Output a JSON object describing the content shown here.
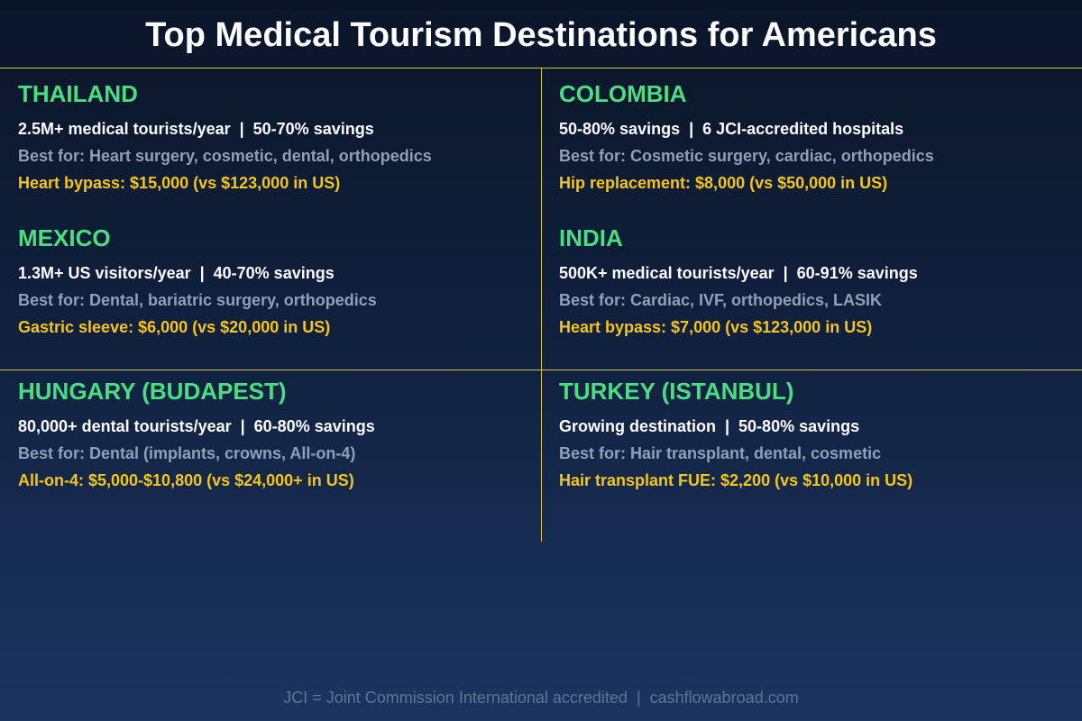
{
  "title": "Top Medical Tourism Destinations for Americans",
  "destinations": [
    {
      "name": "THAILAND",
      "stats": "2.5M+ medical tourists/year  |  50-70% savings",
      "best_for": "Best for: Heart surgery, cosmetic, dental, orthopedics",
      "price": "Heart bypass: $15,000 (vs $123,000 in US)"
    },
    {
      "name": "COLOMBIA",
      "stats": "50-80% savings  |  6 JCI-accredited hospitals",
      "best_for": "Best for: Cosmetic surgery, cardiac, orthopedics",
      "price": "Hip replacement: $8,000 (vs $50,000 in US)"
    },
    {
      "name": "MEXICO",
      "stats": "1.3M+ US visitors/year  |  40-70% savings",
      "best_for": "Best for: Dental, bariatric surgery, orthopedics",
      "price": "Gastric sleeve: $6,000 (vs $20,000 in US)"
    },
    {
      "name": "INDIA",
      "stats": "500K+ medical tourists/year  |  60-91% savings",
      "best_for": "Best for: Cardiac, IVF, orthopedics, LASIK",
      "price": "Heart bypass: $7,000 (vs $123,000 in US)"
    },
    {
      "name": "HUNGARY (BUDAPEST)",
      "stats": "80,000+ dental tourists/year  |  60-80% savings",
      "best_for": "Best for: Dental (implants, crowns, All-on-4)",
      "price": "All-on-4: $5,000-$10,800 (vs $24,000+ in US)"
    },
    {
      "name": "TURKEY (ISTANBUL)",
      "stats": "Growing destination  |  50-80% savings",
      "best_for": "Best for: Hair transplant, dental, cosmetic",
      "price": "Hair transplant FUE: $2,200 (vs $10,000 in US)"
    }
  ],
  "footer": "JCI = Joint Commission International accredited  |  cashflowabroad.com",
  "colors": {
    "heading": "#4ade80",
    "price": "#f5c518",
    "divider": "#d9c24a"
  }
}
